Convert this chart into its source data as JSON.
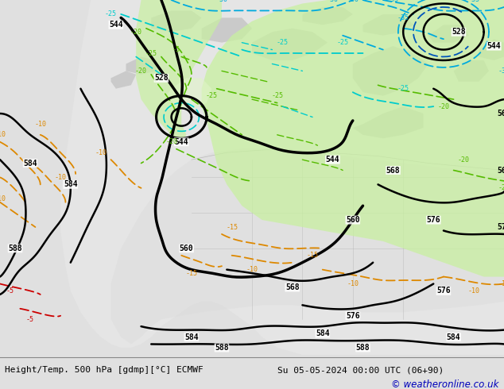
{
  "title_left": "Height/Temp. 500 hPa [gdmp][°C] ECMWF",
  "title_right": "Su 05-05-2024 00:00 UTC (06+90)",
  "copyright": "© weatheronline.co.uk",
  "bg_color": "#e0e0e0",
  "ocean_color": "#e0e0e0",
  "land_color": "#e8e8e8",
  "green_fill_color": "#c8f0a0",
  "gray_land_color": "#c8c8c8",
  "bottom_bar_color": "#f5f5f5",
  "title_color": "#000000",
  "copyright_color": "#0000bb",
  "geo_black": "#000000",
  "temp_orange": "#dd8800",
  "temp_blue": "#00aadd",
  "temp_blue2": "#0055bb",
  "temp_cyan": "#00cccc",
  "temp_green": "#55bb00",
  "temp_red": "#cc0000",
  "border_gray": "#888888",
  "figsize": [
    6.34,
    4.9
  ],
  "dpi": 100
}
